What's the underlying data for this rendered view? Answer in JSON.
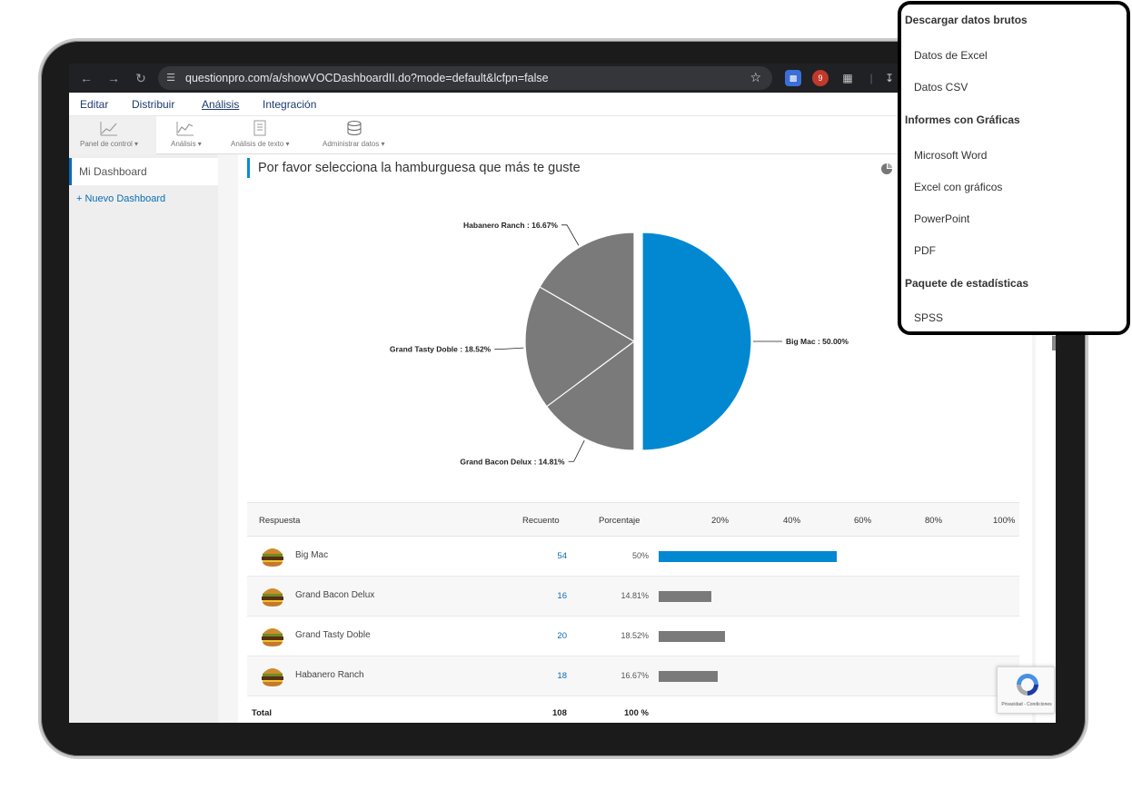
{
  "browser": {
    "url": "questionpro.com/a/showVOCDashboardII.do?mode=default&lcfpn=false",
    "ext_badge": "9"
  },
  "menu": {
    "items": [
      "Editar",
      "Distribuir",
      "Análisis",
      "Integración"
    ],
    "active": "Análisis"
  },
  "toolbar": {
    "items": [
      "Panel de control",
      "Análisis",
      "Análisis de texto",
      "Administrar datos"
    ]
  },
  "sidebar": {
    "dashboard": "Mi Dashboard",
    "new_dashboard": "+ Nuevo Dashboard"
  },
  "question": {
    "title": "Por favor selecciona la hamburguesa que más te guste"
  },
  "chart_data": {
    "type": "pie",
    "categories": [
      "Big Mac",
      "Grand Bacon Delux",
      "Grand Tasty Doble",
      "Habanero Ranch"
    ],
    "values": [
      50.0,
      14.81,
      18.52,
      16.67
    ],
    "labels": [
      "Big Mac : 50.00%",
      "Grand Bacon Delux : 14.81%",
      "Grand Tasty Doble : 18.52%",
      "Habanero Ranch : 16.67%"
    ],
    "colors": [
      "#0288d1",
      "#7a7a7a",
      "#7a7a7a",
      "#7a7a7a"
    ],
    "exploded": "Big Mac"
  },
  "table": {
    "headers": {
      "response": "Respuesta",
      "count": "Recuento",
      "percent": "Porcentaje",
      "ticks": [
        "20%",
        "40%",
        "60%",
        "80%",
        "100%"
      ]
    },
    "rows": [
      {
        "name": "Big Mac",
        "count": "54",
        "percent": "50%",
        "value": 50,
        "color": "#0288d1"
      },
      {
        "name": "Grand Bacon Delux",
        "count": "16",
        "percent": "14.81%",
        "value": 14.81,
        "color": "#7a7a7a"
      },
      {
        "name": "Grand Tasty Doble",
        "count": "20",
        "percent": "18.52%",
        "value": 18.52,
        "color": "#7a7a7a"
      },
      {
        "name": "Habanero Ranch",
        "count": "18",
        "percent": "16.67%",
        "value": 16.67,
        "color": "#7a7a7a"
      }
    ],
    "total": {
      "label": "Total",
      "count": "108",
      "percent": "100 %"
    }
  },
  "recaptcha": {
    "links": "Privacidad - Condiciones"
  },
  "dropdown": {
    "raw_heading": "Descargar datos brutos",
    "raw_items": [
      "Datos de Excel",
      "Datos CSV"
    ],
    "reports_heading": "Informes con Gráficas",
    "reports_items": [
      "Microsoft Word",
      "Excel con gráficos",
      "PowerPoint",
      "PDF"
    ],
    "stats_heading": "Paquete de estadísticas",
    "stats_items": [
      "SPSS"
    ]
  }
}
